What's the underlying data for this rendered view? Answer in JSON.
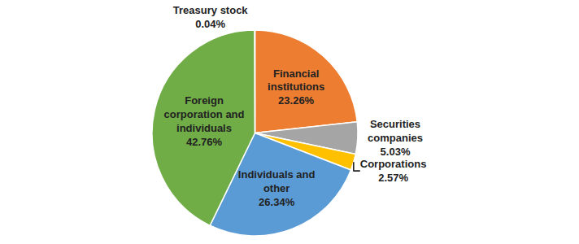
{
  "chart_data": {
    "type": "pie",
    "categories": [
      "Financial institutions",
      "Securities companies",
      "Corporations",
      "Individuals and other",
      "Foreign corporation and individuals",
      "Treasury stock"
    ],
    "values": [
      23.26,
      5.03,
      2.57,
      26.34,
      42.76,
      0.04
    ],
    "value_labels": [
      "23.26%",
      "5.03%",
      "2.57%",
      "26.34%",
      "42.76%",
      "0.04%"
    ],
    "colors": [
      "#ed7d31",
      "#a5a5a5",
      "#ffc000",
      "#5b9bd5",
      "#70ad47",
      "#264478"
    ],
    "data_labels": true
  }
}
